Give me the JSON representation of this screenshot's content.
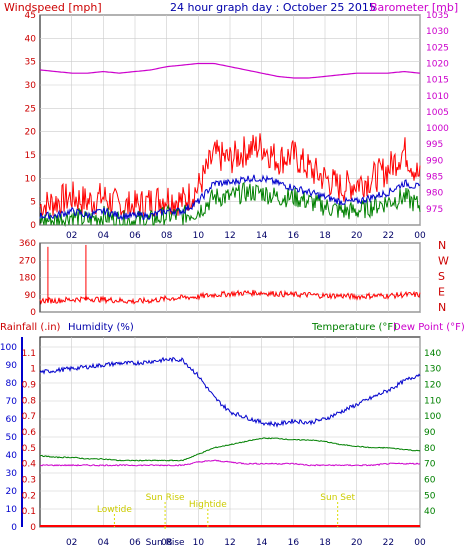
{
  "header": {
    "left": "Windspeed [mph]",
    "center": "24 hour graph day : October 25 2015",
    "right": "Barometer [mb]"
  },
  "labels": {
    "rainfall": "Rainfall (.in)",
    "humidity": "Humidity (%)",
    "temperature": "Temperature (°F)",
    "dewpoint": "Dew Point (°F)"
  },
  "colors": {
    "gust": "#ff0000",
    "wind": "#008000",
    "avgwind": "#0000cc",
    "barometer": "#cc00cc",
    "direction": "#ff0000",
    "humidity": "#0000cc",
    "temperature": "#008000",
    "dewpoint": "#cc00cc",
    "rain": "#ff0000",
    "sun": "#dddd00"
  },
  "chart_data": [
    {
      "type": "line",
      "title": "24 hour graph day : October 25 2015",
      "ylabel": "Windspeed [mph]",
      "y2label": "Barometer [mb]",
      "ylim": [
        0,
        45
      ],
      "y2lim": [
        970,
        1035
      ],
      "yticks": [
        "0",
        "5",
        "10",
        "15",
        "20",
        "25",
        "30",
        "35",
        "40",
        "45"
      ],
      "y2ticks": [
        "975",
        "980",
        "985",
        "990",
        "995",
        "1000",
        "1005",
        "1010",
        "1015",
        "1020",
        "1025",
        "1030",
        "1035"
      ],
      "x_ticks": [
        "02",
        "04",
        "06",
        "08",
        "10",
        "12",
        "14",
        "16",
        "18",
        "20",
        "22",
        "00"
      ],
      "x": [
        0,
        1,
        2,
        3,
        4,
        5,
        6,
        7,
        8,
        9,
        10,
        11,
        12,
        13,
        14,
        15,
        16,
        17,
        18,
        19,
        20,
        21,
        22,
        23,
        24
      ],
      "series": [
        {
          "name": "gust",
          "values": [
            4,
            5,
            6,
            5,
            6,
            4,
            4,
            5,
            6,
            5,
            8,
            15,
            14,
            16,
            17,
            14,
            15,
            12,
            10,
            8,
            9,
            10,
            12,
            16,
            10
          ]
        },
        {
          "name": "average",
          "values": [
            2,
            2,
            3,
            2,
            3,
            2,
            2,
            2,
            3,
            3,
            5,
            9,
            9,
            10,
            10,
            9,
            8,
            7,
            6,
            5,
            5,
            6,
            7,
            9,
            8
          ]
        },
        {
          "name": "wind",
          "values": [
            1,
            1,
            2,
            1,
            2,
            1,
            1,
            1,
            2,
            2,
            3,
            6,
            6,
            7,
            7,
            6,
            6,
            5,
            4,
            3,
            3,
            4,
            5,
            6,
            4
          ]
        },
        {
          "name": "barometer",
          "values": [
            1018,
            1017.5,
            1017,
            1017,
            1017.5,
            1017,
            1017.5,
            1018,
            1019,
            1019.5,
            1020,
            1020,
            1019,
            1018,
            1017,
            1016,
            1015.5,
            1015.5,
            1016,
            1016.5,
            1017,
            1017,
            1017,
            1017.5,
            1017
          ]
        }
      ]
    },
    {
      "type": "scatter",
      "y_ticks": [
        "0",
        "90",
        "180",
        "270",
        "360"
      ],
      "compass": [
        "N",
        "W",
        "S",
        "E",
        "N"
      ],
      "x": [
        0,
        1,
        2,
        3,
        4,
        5,
        6,
        7,
        8,
        9,
        10,
        11,
        12,
        13,
        14,
        15,
        16,
        17,
        18,
        19,
        20,
        21,
        22,
        23,
        24
      ],
      "values": [
        60,
        60,
        65,
        70,
        65,
        60,
        55,
        60,
        70,
        75,
        80,
        90,
        95,
        100,
        100,
        95,
        90,
        90,
        85,
        85,
        80,
        85,
        85,
        90,
        90
      ]
    },
    {
      "type": "line",
      "ylabel": "Rainfall (.in)",
      "y2label": "Humidity (%)",
      "y3label": "Temperature (°F)",
      "y4label": "Dew Point (°F)",
      "ylim": [
        0,
        1.2
      ],
      "y2lim": [
        0,
        100
      ],
      "y3lim": [
        30,
        150
      ],
      "rain_ticks": [
        "0",
        "0.1",
        "0.2",
        "0.3",
        "0.4",
        "0.5",
        "0.6",
        "0.7",
        "0.8",
        "0.9",
        "1",
        "1.1"
      ],
      "humidity_ticks": [
        "0",
        "10",
        "20",
        "30",
        "40",
        "50",
        "60",
        "70",
        "80",
        "90",
        "100"
      ],
      "temp_ticks": [
        "40",
        "50",
        "60",
        "70",
        "80",
        "90",
        "100",
        "110",
        "120",
        "130",
        "140"
      ],
      "x": [
        0,
        1,
        2,
        3,
        4,
        5,
        6,
        7,
        8,
        9,
        10,
        11,
        12,
        13,
        14,
        15,
        16,
        17,
        18,
        19,
        20,
        21,
        22,
        23,
        24
      ],
      "series": [
        {
          "name": "Humidity (%)",
          "values": [
            86,
            87,
            88,
            89,
            90,
            91,
            91,
            92,
            93,
            93,
            84,
            72,
            64,
            61,
            58,
            57,
            59,
            58,
            60,
            64,
            68,
            72,
            76,
            81,
            85
          ]
        },
        {
          "name": "Temperature (°F)",
          "values": [
            75,
            74,
            74,
            73,
            73,
            72,
            72,
            72,
            72,
            72,
            76,
            80,
            82,
            84,
            86,
            86,
            85,
            85,
            84,
            82,
            81,
            80,
            80,
            79,
            78
          ]
        },
        {
          "name": "Dew Point (°F)",
          "values": [
            69,
            69,
            69,
            69,
            69,
            69,
            69,
            69,
            69,
            69,
            71,
            72,
            71,
            70,
            70,
            70,
            70,
            69,
            69,
            69,
            69,
            69,
            70,
            70,
            70
          ]
        },
        {
          "name": "Rainfall (.in)",
          "values": [
            0,
            0,
            0,
            0,
            0,
            0,
            0,
            0,
            0,
            0,
            0,
            0,
            0,
            0,
            0,
            0,
            0,
            0,
            0,
            0,
            0,
            0,
            0,
            0,
            0
          ]
        }
      ],
      "annotations": [
        "Lowtide",
        "Sun Rise",
        "Hightide",
        "Sun Set",
        "Sun Rise"
      ]
    }
  ]
}
